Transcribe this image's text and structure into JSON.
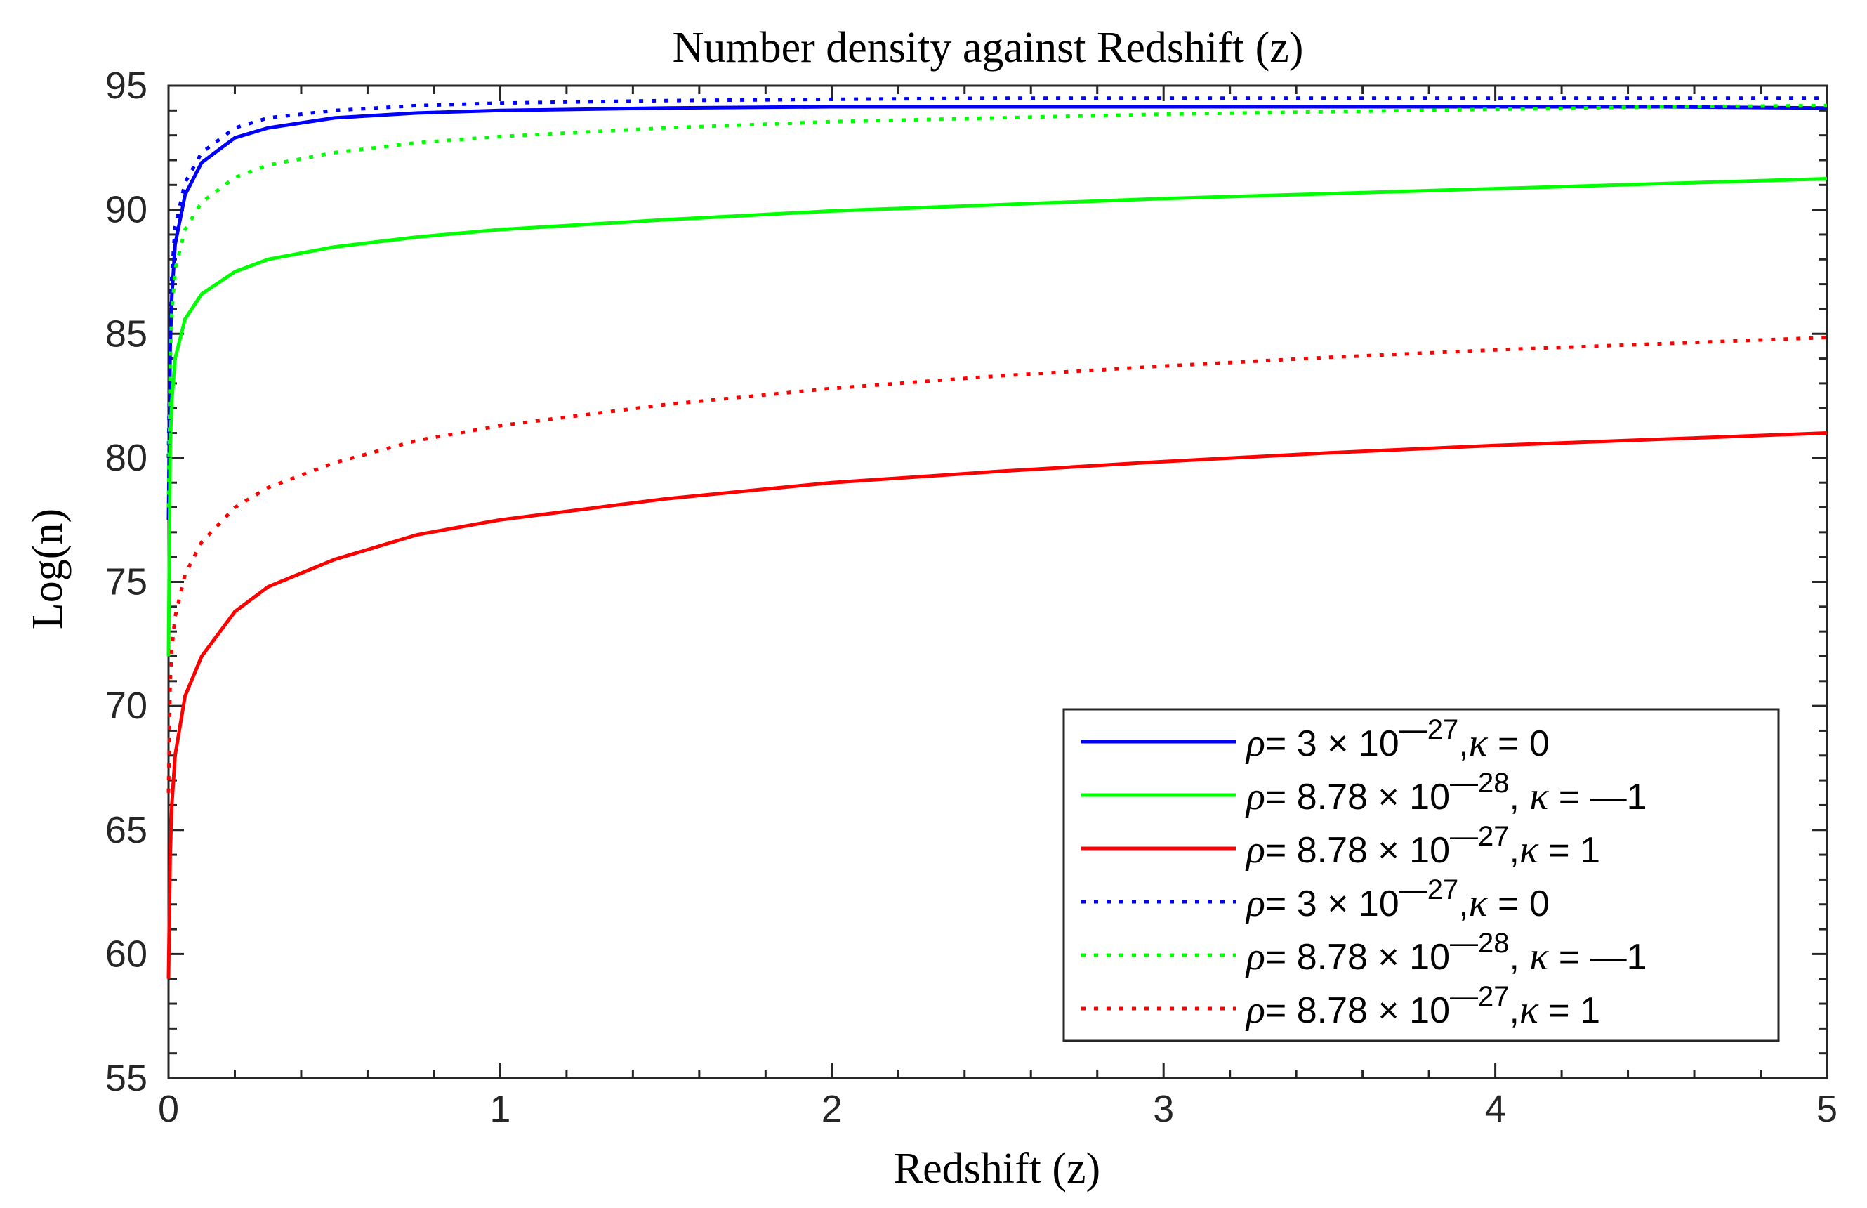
{
  "chart_data": {
    "type": "line",
    "title": "Number density against Redshift (z)",
    "xlabel": "Redshift (z)",
    "ylabel": "Log(n)",
    "xlim": [
      0,
      5
    ],
    "ylim": [
      55,
      95
    ],
    "xticks": [
      0,
      1,
      2,
      3,
      4,
      5
    ],
    "yticks": [
      55,
      60,
      65,
      70,
      75,
      80,
      85,
      90,
      95
    ],
    "grid": false,
    "legend_position": "bottom-right",
    "series": [
      {
        "name": "ρ= 3 × 10⁻²⁷, κ = 0",
        "legend": {
          "pre": "= 3 × 10",
          "exp": "—27",
          "post": ",",
          "kappa": " = 0"
        },
        "color": "#0000ff",
        "style": "solid",
        "x": [
          0,
          0.005,
          0.01,
          0.02,
          0.05,
          0.1,
          0.2,
          0.3,
          0.5,
          0.75,
          1.0,
          1.5,
          2.0,
          2.5,
          3.0,
          3.5,
          4.0,
          4.5,
          5.0
        ],
        "y": [
          77.5,
          84.5,
          86.5,
          88.6,
          90.6,
          91.9,
          92.9,
          93.3,
          93.7,
          93.9,
          94.0,
          94.1,
          94.15,
          94.15,
          94.15,
          94.15,
          94.15,
          94.15,
          94.1
        ]
      },
      {
        "name": "ρ= 8.78 × 10⁻²⁸, κ = —1",
        "legend": {
          "pre": "= 8.78 × 10",
          "exp": "—28",
          "post": ", ",
          "kappa": " = —1"
        },
        "color": "#00ff00",
        "style": "solid",
        "x": [
          0,
          0.005,
          0.01,
          0.02,
          0.05,
          0.1,
          0.2,
          0.3,
          0.5,
          0.75,
          1.0,
          1.5,
          2.0,
          2.5,
          3.0,
          3.5,
          4.0,
          4.5,
          5.0
        ],
        "y": [
          72.0,
          80.5,
          82.3,
          84.0,
          85.6,
          86.6,
          87.5,
          88.0,
          88.5,
          88.9,
          89.2,
          89.6,
          89.95,
          90.2,
          90.45,
          90.65,
          90.85,
          91.05,
          91.25
        ]
      },
      {
        "name": "ρ= 8.78 × 10⁻²⁷, κ = 1",
        "legend": {
          "pre": "= 8.78 × 10",
          "exp": "—27",
          "post": ",",
          "kappa": " = 1"
        },
        "color": "#ff0000",
        "style": "solid",
        "x": [
          0,
          0.005,
          0.01,
          0.02,
          0.05,
          0.1,
          0.2,
          0.3,
          0.5,
          0.75,
          1.0,
          1.5,
          2.0,
          2.5,
          3.0,
          3.5,
          4.0,
          4.5,
          5.0
        ],
        "y": [
          59.0,
          64.0,
          66.0,
          68.0,
          70.4,
          72.0,
          73.8,
          74.8,
          75.9,
          76.9,
          77.5,
          78.35,
          79.0,
          79.45,
          79.85,
          80.2,
          80.5,
          80.75,
          81.0
        ]
      },
      {
        "name": "ρ= 3 × 10⁻²⁷, κ = 0 (dotted)",
        "legend": {
          "pre": "= 3 × 10",
          "exp": "—27",
          "post": ",",
          "kappa": " = 0"
        },
        "color": "#0000ff",
        "style": "dotted",
        "x": [
          0,
          0.005,
          0.01,
          0.02,
          0.05,
          0.1,
          0.2,
          0.3,
          0.5,
          0.75,
          1.0,
          1.5,
          2.0,
          2.5,
          3.0,
          3.5,
          4.0,
          4.5,
          5.0
        ],
        "y": [
          80.0,
          85.5,
          87.4,
          89.3,
          91.1,
          92.3,
          93.3,
          93.7,
          94.0,
          94.2,
          94.3,
          94.4,
          94.45,
          94.5,
          94.5,
          94.5,
          94.5,
          94.5,
          94.5
        ]
      },
      {
        "name": "ρ= 8.78 × 10⁻²⁸, κ = —1 (dotted)",
        "legend": {
          "pre": "= 8.78 × 10",
          "exp": "—28",
          "post": ", ",
          "kappa": " = —1"
        },
        "color": "#00ff00",
        "style": "dotted",
        "x": [
          0,
          0.005,
          0.01,
          0.02,
          0.05,
          0.1,
          0.2,
          0.3,
          0.5,
          0.75,
          1.0,
          1.5,
          2.0,
          2.5,
          3.0,
          3.5,
          4.0,
          4.5,
          5.0
        ],
        "y": [
          78.0,
          84.0,
          85.8,
          87.6,
          89.2,
          90.3,
          91.3,
          91.8,
          92.3,
          92.7,
          92.95,
          93.3,
          93.55,
          93.7,
          93.85,
          93.95,
          94.05,
          94.15,
          94.2
        ]
      },
      {
        "name": "ρ= 8.78 × 10⁻²⁷, κ = 1 (dotted)",
        "legend": {
          "pre": "= 8.78 × 10",
          "exp": "—27",
          "post": ",",
          "kappa": " = 1"
        },
        "color": "#ff0000",
        "style": "dotted",
        "x": [
          0,
          0.005,
          0.01,
          0.02,
          0.05,
          0.1,
          0.2,
          0.3,
          0.5,
          0.75,
          1.0,
          1.5,
          2.0,
          2.5,
          3.0,
          3.5,
          4.0,
          4.5,
          5.0
        ],
        "y": [
          66.5,
          71.0,
          72.3,
          73.6,
          75.3,
          76.6,
          78.0,
          78.8,
          79.8,
          80.7,
          81.3,
          82.15,
          82.8,
          83.3,
          83.7,
          84.05,
          84.35,
          84.6,
          84.85
        ]
      }
    ]
  }
}
